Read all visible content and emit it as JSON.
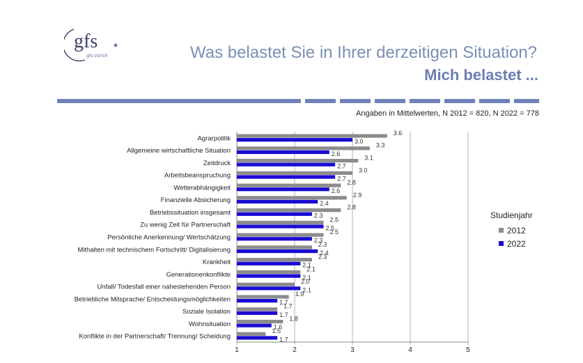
{
  "logo": {
    "text": "gfs",
    "subtext": "gfs-zürich"
  },
  "header": {
    "title": "Was belastet Sie in Ihrer derzeitigen Situation?",
    "subtitle": "Mich belastet ..."
  },
  "note": "Angaben in Mittelwerten, N 2012 = 820, N 2022 = 778",
  "colors": {
    "s2012": "#8c8c8c",
    "s2022": "#1a0bd3",
    "band": "#6f82b8"
  },
  "chart_data": {
    "type": "bar",
    "orientation": "horizontal",
    "categories": [
      "Agrarpolitik",
      "Allgemeine wirtschaftliche Situation",
      "Zeitdruck",
      "Arbeitsbeanspruchung",
      "Wetterabhängigkeit",
      "Finanzielle Absicherung",
      "Betriebssituation insgesamt",
      "Zu wenig Zeit für Partnerschaft",
      "Persönliche Anerkennung/ Wertschätzung",
      "Mithalten mit technischem Fortschritt/ Digitalisierung",
      "Krankheit",
      "Generationenkonflikte",
      "Unfall/ Todesfall einer nahestehenden Person",
      "Betriebliche Mitsprache/ Entscheidungsmöglichkeiten",
      "Soziale Isolation",
      "Wohnsituation",
      "Konflikte in der Partnerschaft/ Trennung/ Scheidung"
    ],
    "series": [
      {
        "name": "2012",
        "values": [
          3.6,
          3.3,
          3.1,
          3.0,
          2.8,
          2.9,
          2.8,
          2.5,
          2.5,
          2.3,
          2.3,
          2.1,
          2.0,
          1.9,
          1.7,
          1.8,
          1.5
        ],
        "labels": [
          "3.6",
          "3.3",
          "3.1",
          "3.0",
          "2.8",
          "2.9",
          "2.8",
          "2.5",
          "2.5",
          "2.3",
          "2.3",
          "2.1",
          "2.0",
          "1.9",
          "1.7",
          "1.8",
          "1.5"
        ]
      },
      {
        "name": "2022",
        "values": [
          3.0,
          2.6,
          2.7,
          2.7,
          2.6,
          2.4,
          2.3,
          2.5,
          2.3,
          2.4,
          2.1,
          2.1,
          2.1,
          1.7,
          1.7,
          1.6,
          1.7
        ],
        "labels": [
          "3.0",
          "2.6",
          "2.7",
          "2.7",
          "2.6",
          "2.4",
          "2.3",
          "2.5",
          "2.3",
          "2.4",
          "2.1",
          "2.1",
          "2.1",
          "1.7",
          "1.7",
          "1.6",
          "1.7"
        ]
      }
    ],
    "xlim": [
      1,
      5
    ],
    "xticks": [
      "1",
      "2",
      "3",
      "4",
      "5"
    ],
    "grid": true,
    "legend": {
      "title": "Studienjahr",
      "position": "right"
    }
  }
}
